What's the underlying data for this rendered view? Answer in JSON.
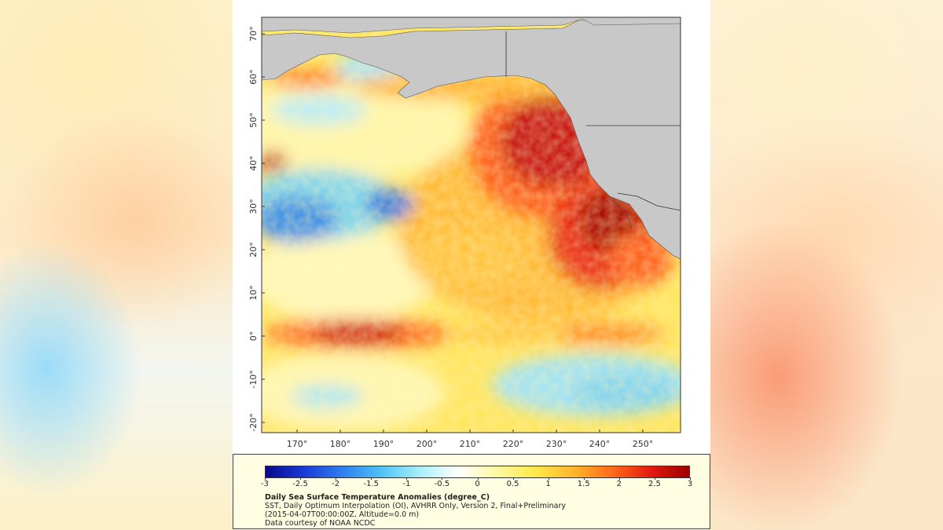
{
  "map": {
    "lat_ticks": [
      "-20°",
      "-10°",
      "0°",
      "10°",
      "20°",
      "30°",
      "40°",
      "50°",
      "60°",
      "70°"
    ],
    "lon_ticks": [
      "170°",
      "180°",
      "190°",
      "200°",
      "210°",
      "220°",
      "230°",
      "240°",
      "250°"
    ],
    "land_color": "#c8c8c8",
    "anomaly_regions": [
      "warm anomaly along North American west coast",
      "cool anomaly in western subtropical Pacific",
      "warm band along equator",
      "cool region south of equator in eastern Pacific"
    ]
  },
  "legend": {
    "colorbar_ticks": [
      "-3",
      "-2.5",
      "-2",
      "-1.5",
      "-1",
      "-0.5",
      "0",
      "0.5",
      "1",
      "1.5",
      "2",
      "2.5",
      "3"
    ],
    "colorbar_colors": [
      "#0a0a8c",
      "#1a3ad8",
      "#2e7ff0",
      "#4fc2f5",
      "#a8eef8",
      "#ffffff",
      "#fff8a0",
      "#ffe94a",
      "#ffb52a",
      "#ff6a1a",
      "#e41a10",
      "#9a0000"
    ],
    "title": "Daily Sea Surface Temperature Anomalies (degree_C)",
    "line1": "SST, Daily Optimum Interpolation (OI), AVHRR Only, Version 2, Final+Preliminary",
    "line2": "(2015-04-07T00:00:00Z, Altitude=0.0 m)",
    "line3": "Data courtesy of NOAA NCDC"
  }
}
